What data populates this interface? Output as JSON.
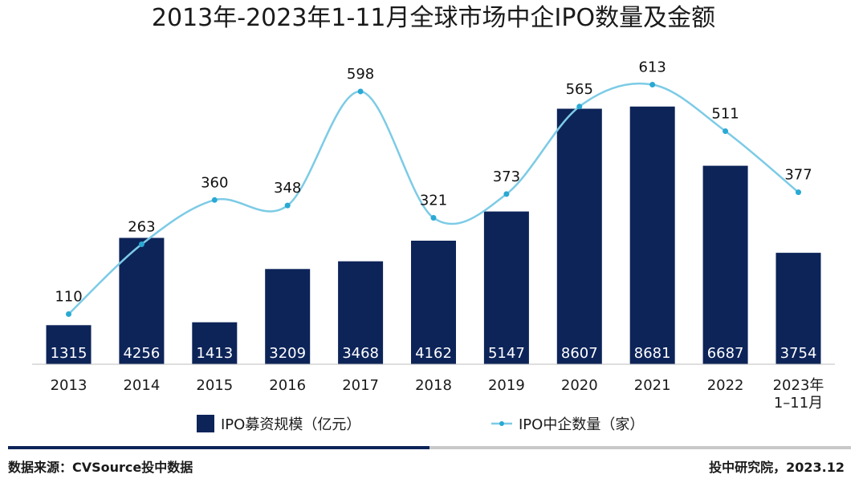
{
  "colors": {
    "bar": "#0d2459",
    "line": "#7ccbe6",
    "marker": "#29a9d3",
    "axis": "#bdbdbd",
    "footer_dark": "#0d2459",
    "footer_light": "#c8c8c8"
  },
  "chart_data": {
    "type": "bar",
    "title": "2013年-2023年1-11月全球市场中企IPO数量及金额",
    "categories": [
      "2013",
      "2014",
      "2015",
      "2016",
      "2017",
      "2018",
      "2019",
      "2020",
      "2021",
      "2022",
      "2023年\n1–11月"
    ],
    "series": [
      {
        "name": "IPO募资规模（亿元）",
        "type": "bar",
        "axis": "left",
        "values": [
          1315,
          4256,
          1413,
          3209,
          3468,
          4162,
          5147,
          8607,
          8681,
          6687,
          3754
        ]
      },
      {
        "name": "IPO中企数量（家）",
        "type": "line",
        "axis": "right",
        "values": [
          110,
          263,
          360,
          348,
          598,
          321,
          373,
          565,
          613,
          511,
          377
        ]
      }
    ],
    "legend_position": "bottom",
    "grid": false
  },
  "footer": {
    "source": "数据来源：CVSource投中数据",
    "credit": "投中研究院，2023.12"
  }
}
